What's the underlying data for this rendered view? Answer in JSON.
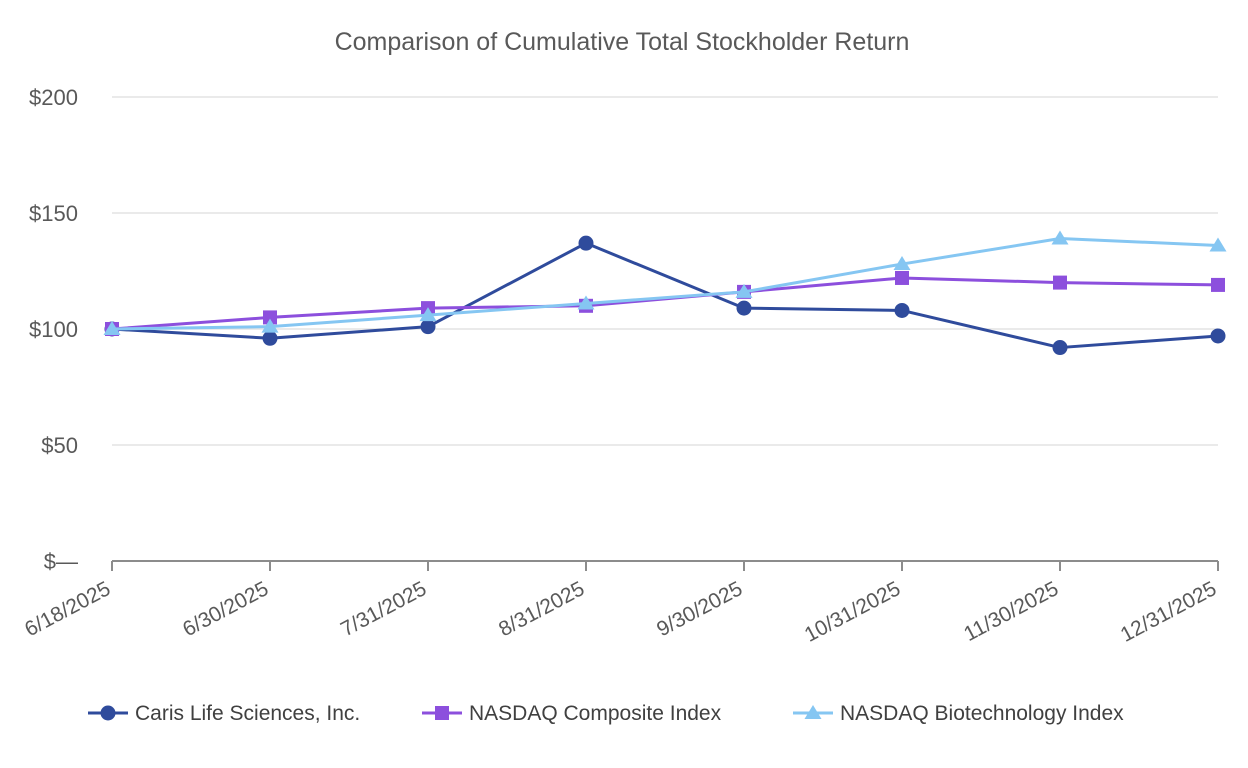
{
  "chart_data": {
    "type": "line",
    "title": "Comparison of Cumulative Total Stockholder Return",
    "xlabel": "",
    "ylabel": "",
    "categories": [
      "6/18/2025",
      "6/30/2025",
      "7/31/2025",
      "8/31/2025",
      "9/30/2025",
      "10/31/2025",
      "11/30/2025",
      "12/31/2025"
    ],
    "ylim": [
      0,
      200
    ],
    "yticks": [
      0,
      50,
      100,
      150,
      200
    ],
    "ytick_labels": [
      "$—",
      "$50",
      "$100",
      "$150",
      "$200"
    ],
    "grid": true,
    "legend_position": "bottom",
    "series": [
      {
        "name": "Caris Life Sciences, Inc.",
        "color": "#2f4b9c",
        "marker": "circle",
        "values": [
          100,
          96,
          101,
          137,
          109,
          108,
          92,
          97
        ]
      },
      {
        "name": "NASDAQ Composite Index",
        "color": "#8c4fdd",
        "marker": "square",
        "values": [
          100,
          105,
          109,
          110,
          116,
          122,
          120,
          119
        ]
      },
      {
        "name": "NASDAQ Biotechnology Index",
        "color": "#85c6f2",
        "marker": "triangle",
        "values": [
          100,
          101,
          106,
          111,
          116,
          128,
          139,
          136
        ]
      }
    ]
  }
}
